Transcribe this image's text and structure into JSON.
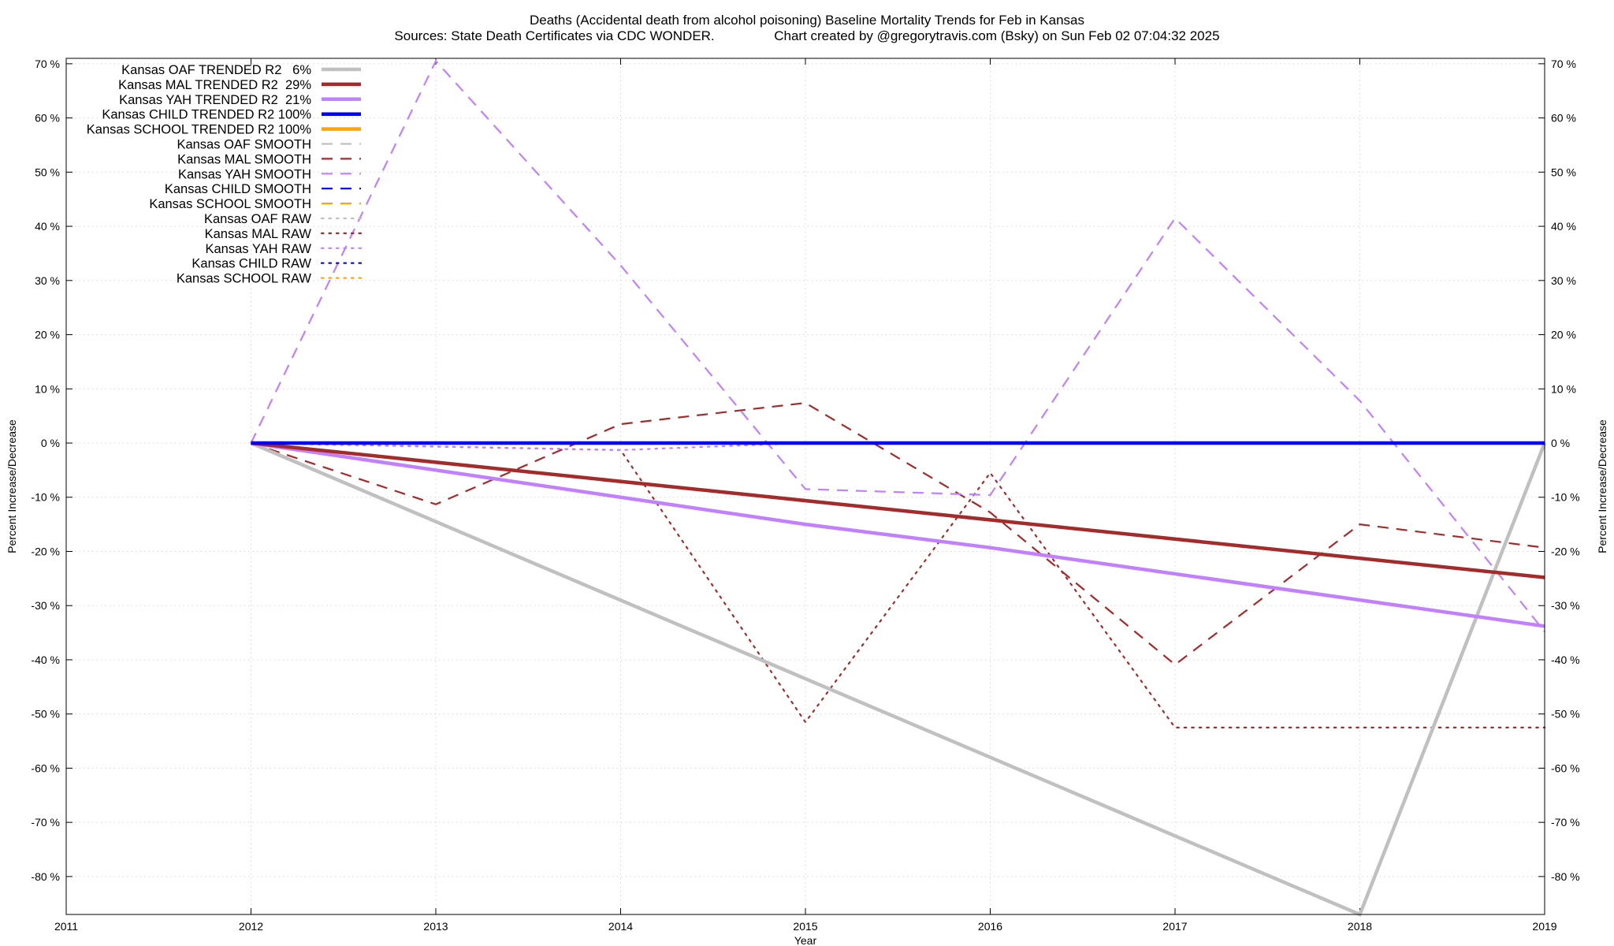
{
  "chart_data": {
    "type": "line",
    "title": "Deaths (Accidental death from alcohol poisoning)  Baseline Mortality Trends for Feb in Kansas",
    "subtitle": "Sources: State Death Certificates via CDC WONDER.                Chart created by @gregorytravis.com (Bsky) on Sun Feb 02 07:04:32 2025",
    "xlabel": "Year",
    "ylabel": "Percent Increase/Decrease",
    "ylabel_right": "Percent Increase/Decrease",
    "xlim": [
      2011,
      2019
    ],
    "ylim": [
      -87,
      71
    ],
    "x_ticks": [
      "2011",
      "2012",
      "2013",
      "2014",
      "2015",
      "2016",
      "2017",
      "2018",
      "2019"
    ],
    "y_ticks": [
      "70 %",
      "60 %",
      "50 %",
      "40 %",
      "30 %",
      "20 %",
      "10 %",
      "0 %",
      "-10 %",
      "-20 %",
      "-30 %",
      "-40 %",
      "-50 %",
      "-60 %",
      "-70 %",
      "-80 %"
    ],
    "grid": true,
    "legend_position": "top-left",
    "series": [
      {
        "name": "Kansas OAF TRENDED R2   6%",
        "color": "#c0c0c0",
        "style": "solid",
        "width": 4.5,
        "x": [
          2012,
          2018,
          2019
        ],
        "y": [
          0,
          -87,
          0
        ]
      },
      {
        "name": "Kansas MAL TRENDED R2  29%",
        "color": "#a52a2a",
        "style": "solid",
        "width": 4.5,
        "x": [
          2012,
          2019
        ],
        "y": [
          0,
          -24.8
        ]
      },
      {
        "name": "Kansas YAH TRENDED R2  21%",
        "color": "#c080ff",
        "style": "solid",
        "width": 4.5,
        "x": [
          2012,
          2015,
          2016,
          2019
        ],
        "y": [
          0,
          -15,
          -19.3,
          -33.8
        ]
      },
      {
        "name": "Kansas CHILD TRENDED R2 100%",
        "color": "#0000ff",
        "style": "solid",
        "width": 4.5,
        "x": [
          2012,
          2019
        ],
        "y": [
          0,
          0
        ]
      },
      {
        "name": "Kansas SCHOOL TRENDED R2 100%",
        "color": "#ffa500",
        "style": "solid",
        "width": 4.5,
        "x": [],
        "y": []
      },
      {
        "name": "Kansas OAF SMOOTH",
        "color": "#c0c0c0",
        "style": "dashed",
        "width": 2.2,
        "x": [],
        "y": []
      },
      {
        "name": "Kansas MAL SMOOTH",
        "color": "#a52a2a",
        "style": "dashed",
        "width": 2.2,
        "x": [
          2012,
          2013,
          2014,
          2015,
          2016,
          2017,
          2018,
          2019
        ],
        "y": [
          0,
          -11.3,
          3.5,
          7.4,
          -12.8,
          -40.9,
          -15,
          -19.3
        ]
      },
      {
        "name": "Kansas YAH SMOOTH",
        "color": "#c080ff",
        "style": "dashed",
        "width": 2.2,
        "x": [
          2012,
          2013,
          2014,
          2015,
          2016,
          2017,
          2018,
          2019
        ],
        "y": [
          0,
          70.5,
          32.8,
          -8.5,
          -9.6,
          41.5,
          7.8,
          -34.8
        ]
      },
      {
        "name": "Kansas CHILD SMOOTH",
        "color": "#0000ff",
        "style": "dashed",
        "width": 2.2,
        "x": [],
        "y": []
      },
      {
        "name": "Kansas SCHOOL SMOOTH",
        "color": "#ffa500",
        "style": "dashed",
        "width": 2.2,
        "x": [],
        "y": []
      },
      {
        "name": "Kansas OAF RAW",
        "color": "#c0c0c0",
        "style": "dotted",
        "width": 2.2,
        "x": [],
        "y": []
      },
      {
        "name": "Kansas MAL RAW",
        "color": "#a52a2a",
        "style": "dotted",
        "width": 2.2,
        "x": [
          2012,
          2014,
          2015,
          2016,
          2017,
          2018,
          2019
        ],
        "y": [
          0,
          -1.3,
          -51.5,
          -5.5,
          -52.5,
          -52.5,
          -52.5
        ]
      },
      {
        "name": "Kansas YAH RAW",
        "color": "#c080ff",
        "style": "dotted",
        "width": 2.2,
        "x": [
          2012,
          2014,
          2015,
          2016,
          2019
        ],
        "y": [
          0,
          -1.3,
          0,
          0,
          0
        ]
      },
      {
        "name": "Kansas CHILD RAW",
        "color": "#0000ff",
        "style": "dotted",
        "width": 2.2,
        "x": [],
        "y": []
      },
      {
        "name": "Kansas SCHOOL RAW",
        "color": "#ffa500",
        "style": "dotted",
        "width": 2.2,
        "x": [],
        "y": []
      }
    ]
  }
}
